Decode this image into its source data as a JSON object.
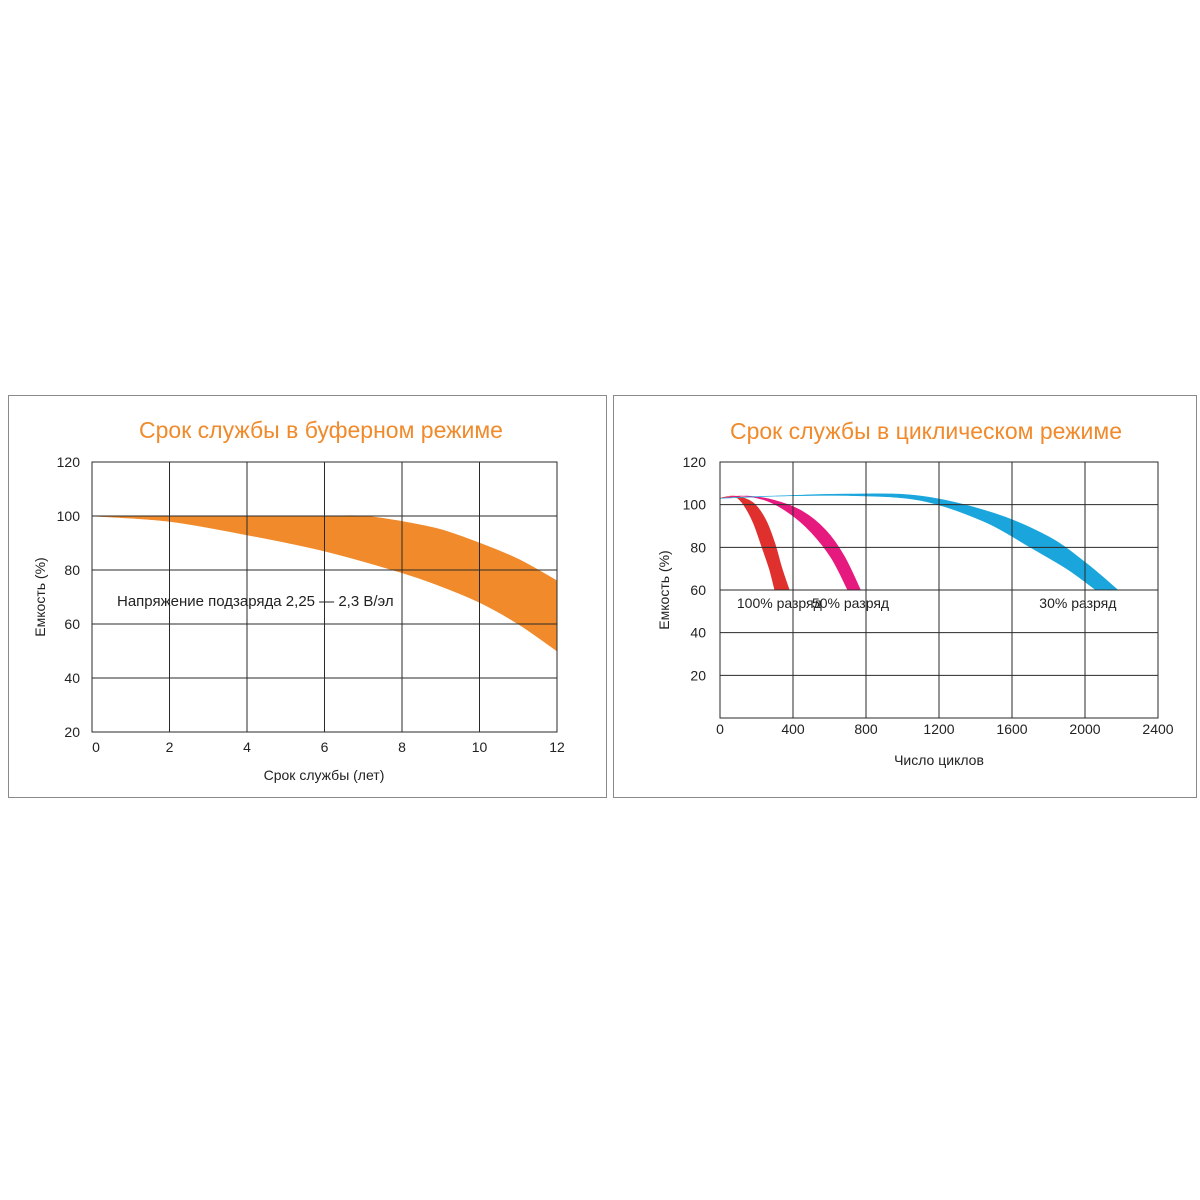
{
  "chart_data": [
    {
      "type": "area",
      "title": "Срок службы в буферном режиме",
      "xlabel": "Срок службы (лет)",
      "ylabel": "Емкость (%)",
      "xlim": [
        0,
        12
      ],
      "ylim": [
        20,
        120
      ],
      "x_ticks": [
        "0",
        "2",
        "4",
        "6",
        "8",
        "10",
        "12"
      ],
      "y_ticks": [
        "20",
        "40",
        "60",
        "80",
        "100",
        "120"
      ],
      "grid": true,
      "annotation": "Напряжение подзаряда 2,25 — 2,3 В/эл",
      "series": [
        {
          "color": "#f08a2b",
          "upper": [
            [
              0,
              100
            ],
            [
              2,
              100
            ],
            [
              4,
              100
            ],
            [
              6,
              100
            ],
            [
              7,
              100
            ],
            [
              8,
              98
            ],
            [
              9,
              95
            ],
            [
              10,
              90
            ],
            [
              11,
              84
            ],
            [
              12,
              76
            ]
          ],
          "lower": [
            [
              0,
              100
            ],
            [
              2,
              98
            ],
            [
              4,
              93
            ],
            [
              6,
              87
            ],
            [
              8,
              79
            ],
            [
              9,
              74
            ],
            [
              10,
              68
            ],
            [
              11,
              60
            ],
            [
              12,
              50
            ]
          ]
        }
      ]
    },
    {
      "type": "area",
      "title": "Срок службы в циклическом режиме",
      "xlabel": "Число циклов",
      "ylabel": "Емкость (%)",
      "xlim": [
        0,
        2400
      ],
      "ylim": [
        0,
        120
      ],
      "x_ticks": [
        "0",
        "400",
        "800",
        "1200",
        "1600",
        "2000",
        "2400"
      ],
      "y_ticks": [
        "0",
        "20",
        "40",
        "60",
        "80",
        "100",
        "120"
      ],
      "grid": true,
      "series": [
        {
          "name": "100% разряд",
          "color": "#e0302e",
          "upper": [
            [
              0,
              103
            ],
            [
              80,
              104
            ],
            [
              180,
              101
            ],
            [
              250,
              93
            ],
            [
              300,
              82
            ],
            [
              340,
              70
            ],
            [
              380,
              60
            ]
          ],
          "lower": [
            [
              0,
              103
            ],
            [
              70,
              104
            ],
            [
              120,
              101
            ],
            [
              180,
              92
            ],
            [
              230,
              80
            ],
            [
              270,
              70
            ],
            [
              300,
              60
            ]
          ]
        },
        {
          "name": "50% разряд",
          "color": "#e6197f",
          "upper": [
            [
              0,
              103
            ],
            [
              150,
              104
            ],
            [
              300,
              102
            ],
            [
              450,
              97
            ],
            [
              580,
              88
            ],
            [
              680,
              76
            ],
            [
              770,
              60
            ]
          ],
          "lower": [
            [
              0,
              103
            ],
            [
              120,
              104
            ],
            [
              250,
              102
            ],
            [
              380,
              96
            ],
            [
              500,
              87
            ],
            [
              610,
              75
            ],
            [
              700,
              60
            ]
          ]
        },
        {
          "name": "30% разряд",
          "color": "#1aa6dc",
          "upper": [
            [
              0,
              103
            ],
            [
              300,
              104
            ],
            [
              700,
              105
            ],
            [
              1100,
              104
            ],
            [
              1500,
              96
            ],
            [
              1800,
              85
            ],
            [
              2000,
              73
            ],
            [
              2180,
              60
            ]
          ],
          "lower": [
            [
              0,
              103
            ],
            [
              300,
              104
            ],
            [
              700,
              104.3
            ],
            [
              1100,
              102
            ],
            [
              1450,
              92
            ],
            [
              1700,
              80
            ],
            [
              1900,
              70
            ],
            [
              2060,
              60
            ]
          ]
        }
      ]
    }
  ]
}
